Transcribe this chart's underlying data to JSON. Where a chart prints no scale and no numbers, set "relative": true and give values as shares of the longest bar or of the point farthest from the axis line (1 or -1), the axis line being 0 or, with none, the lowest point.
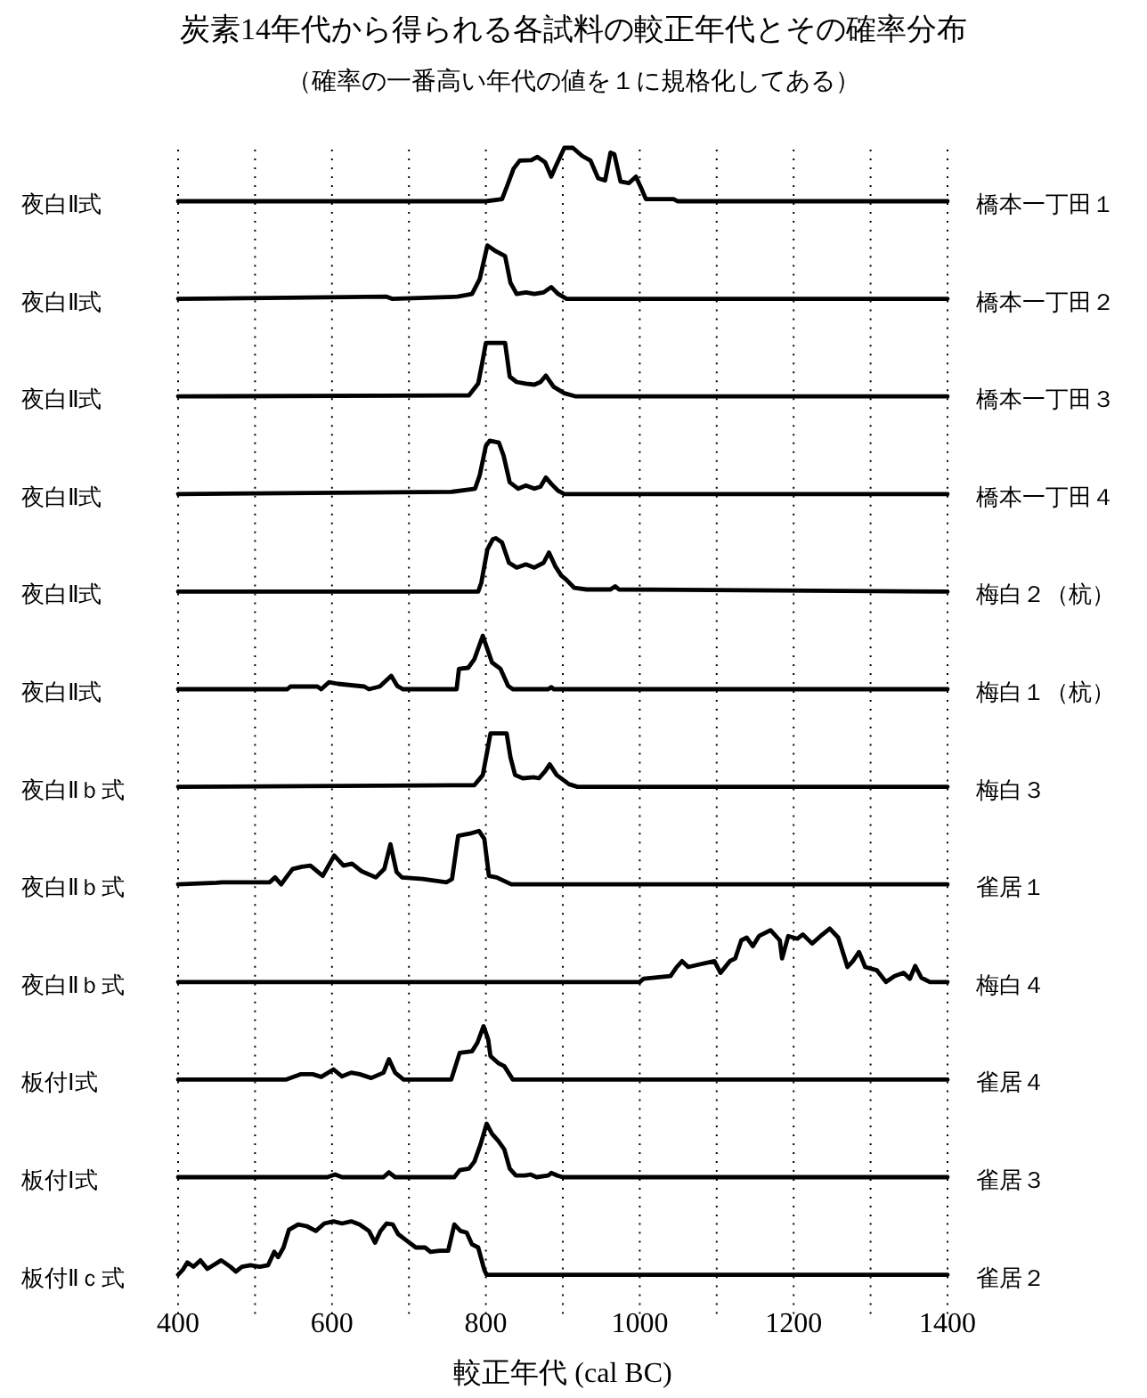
{
  "chart_data": [
    {
      "type": "line",
      "relative": true,
      "title": "炭素14年代から得られる各試料の較正年代とその確率分布",
      "subtitle": "（確率の一番高い年代の値を１に規格化してある）",
      "ylabel": "夜白Ⅱ式",
      "y2label": "橋本一丁田１",
      "grid": "x",
      "tick_labels": false,
      "xlim": [
        400,
        1400
      ],
      "xticks": [
        400,
        {
          "value": 500,
          "label": null
        },
        600,
        {
          "value": 700,
          "label": null
        },
        800,
        {
          "value": 900,
          "label": null
        },
        1000,
        {
          "value": 1100,
          "label": null
        },
        1200,
        {
          "value": 1300,
          "label": null
        },
        1400
      ],
      "x": [
        400,
        800,
        821,
        828,
        836,
        844,
        859,
        867,
        877,
        885,
        890,
        902,
        913,
        925,
        936,
        946,
        955,
        962,
        967,
        975,
        986,
        995,
        1002,
        1008,
        1044,
        1049,
        1400
      ],
      "series": [
        {
          "color": "#000000",
          "values": [
            0,
            0,
            0.04,
            0.3,
            0.61,
            0.76,
            0.77,
            0.83,
            0.73,
            0.46,
            0.63,
            1,
            1,
            0.85,
            0.76,
            0.43,
            0.39,
            0.91,
            0.88,
            0.37,
            0.34,
            0.46,
            0.24,
            0.04,
            0.04,
            0,
            0
          ]
        }
      ]
    },
    {
      "type": "line",
      "relative": true,
      "ylabel": "夜白Ⅱ式",
      "y2label": "橋本一丁田２",
      "grid": "x",
      "tick_labels": false,
      "xlim": [
        400,
        1400
      ],
      "xticks": [
        400,
        {
          "value": 500,
          "label": null
        },
        600,
        {
          "value": 700,
          "label": null
        },
        800,
        {
          "value": 900,
          "label": null
        },
        1000,
        {
          "value": 1100,
          "label": null
        },
        1200,
        {
          "value": 1300,
          "label": null
        },
        1400
      ],
      "x": [
        400,
        671,
        678,
        763,
        782,
        792,
        802,
        813,
        825,
        832,
        840,
        852,
        863,
        875,
        885,
        894,
        905,
        1400
      ],
      "series": [
        {
          "color": "#000000",
          "values": [
            0,
            0.04,
            0,
            0.04,
            0.09,
            0.37,
            1,
            0.89,
            0.8,
            0.3,
            0.09,
            0.12,
            0.09,
            0.12,
            0.22,
            0.09,
            0,
            0
          ]
        }
      ]
    },
    {
      "type": "line",
      "relative": true,
      "ylabel": "夜白Ⅱ式",
      "y2label": "橋本一丁田３",
      "grid": "x",
      "tick_labels": false,
      "xlim": [
        400,
        1400
      ],
      "xticks": [
        400,
        {
          "value": 500,
          "label": null
        },
        600,
        {
          "value": 700,
          "label": null
        },
        800,
        {
          "value": 900,
          "label": null
        },
        1000,
        {
          "value": 1100,
          "label": null
        },
        1200,
        {
          "value": 1300,
          "label": null
        },
        1400
      ],
      "x": [
        400,
        778,
        790,
        795,
        800,
        825,
        831,
        840,
        852,
        863,
        871,
        878,
        888,
        902,
        917,
        1400
      ],
      "series": [
        {
          "color": "#000000",
          "values": [
            0,
            0.02,
            0.24,
            0.61,
            1,
            1,
            0.37,
            0.27,
            0.24,
            0.22,
            0.27,
            0.39,
            0.18,
            0.06,
            0,
            0
          ]
        }
      ]
    },
    {
      "type": "line",
      "relative": true,
      "ylabel": "夜白Ⅱ式",
      "y2label": "橋本一丁田４",
      "grid": "x",
      "tick_labels": false,
      "xlim": [
        400,
        1400
      ],
      "xticks": [
        400,
        {
          "value": 500,
          "label": null
        },
        600,
        {
          "value": 700,
          "label": null
        },
        800,
        {
          "value": 900,
          "label": null
        },
        1000,
        {
          "value": 1100,
          "label": null
        },
        1200,
        {
          "value": 1300,
          "label": null
        },
        1400
      ],
      "x": [
        400,
        755,
        786,
        792,
        800,
        805,
        817,
        823,
        831,
        842,
        852,
        863,
        871,
        878,
        885,
        894,
        902,
        1400
      ],
      "series": [
        {
          "color": "#000000",
          "values": [
            0,
            0.04,
            0.1,
            0.35,
            0.9,
            1,
            0.96,
            0.72,
            0.22,
            0.1,
            0.16,
            0.1,
            0.14,
            0.31,
            0.19,
            0.06,
            0,
            0
          ]
        }
      ]
    },
    {
      "type": "line",
      "relative": true,
      "ylabel": "夜白Ⅱ式",
      "y2label": "梅白２（杭）",
      "grid": "x",
      "tick_labels": false,
      "xlim": [
        400,
        1400
      ],
      "xticks": [
        400,
        {
          "value": 500,
          "label": null
        },
        600,
        {
          "value": 700,
          "label": null
        },
        800,
        {
          "value": 900,
          "label": null
        },
        1000,
        {
          "value": 1100,
          "label": null
        },
        1200,
        {
          "value": 1300,
          "label": null
        },
        1400
      ],
      "x": [
        400,
        790,
        794,
        802,
        809,
        813,
        821,
        830,
        840,
        852,
        863,
        875,
        882,
        890,
        898,
        904,
        915,
        931,
        962,
        968,
        973,
        1400
      ],
      "series": [
        {
          "color": "#000000",
          "values": [
            0,
            0,
            0.16,
            0.79,
            0.98,
            1,
            0.92,
            0.54,
            0.45,
            0.51,
            0.45,
            0.54,
            0.73,
            0.48,
            0.3,
            0.23,
            0.07,
            0.04,
            0.04,
            0.1,
            0.04,
            0
          ]
        }
      ]
    },
    {
      "type": "line",
      "relative": true,
      "ylabel": "夜白Ⅱ式",
      "y2label": "梅白１（杭）",
      "grid": "x",
      "tick_labels": false,
      "xlim": [
        400,
        1400
      ],
      "xticks": [
        400,
        {
          "value": 500,
          "label": null
        },
        600,
        {
          "value": 700,
          "label": null
        },
        800,
        {
          "value": 900,
          "label": null
        },
        1000,
        {
          "value": 1100,
          "label": null
        },
        1200,
        {
          "value": 1300,
          "label": null
        },
        1400
      ],
      "x": [
        400,
        542,
        546,
        581,
        586,
        596,
        608,
        642,
        648,
        662,
        677,
        685,
        692,
        762,
        765,
        777,
        785,
        796,
        802,
        808,
        819,
        829,
        835,
        881,
        885,
        888,
        1400
      ],
      "series": [
        {
          "color": "#000000",
          "values": [
            0,
            0,
            0.05,
            0.05,
            0,
            0.13,
            0.1,
            0.05,
            0,
            0.05,
            0.25,
            0.06,
            0,
            0,
            0.38,
            0.4,
            0.56,
            1,
            0.75,
            0.5,
            0.38,
            0.06,
            0,
            0,
            0.04,
            0,
            0
          ]
        }
      ]
    },
    {
      "type": "line",
      "relative": true,
      "ylabel": "夜白Ⅱｂ式",
      "y2label": "梅白３",
      "grid": "x",
      "tick_labels": false,
      "xlim": [
        400,
        1400
      ],
      "xticks": [
        400,
        {
          "value": 500,
          "label": null
        },
        600,
        {
          "value": 700,
          "label": null
        },
        800,
        {
          "value": 900,
          "label": null
        },
        1000,
        {
          "value": 1100,
          "label": null
        },
        1200,
        {
          "value": 1300,
          "label": null
        },
        1400
      ],
      "x": [
        400,
        785,
        796,
        802,
        806,
        827,
        832,
        838,
        848,
        862,
        869,
        877,
        883,
        892,
        908,
        919,
        1400
      ],
      "series": [
        {
          "color": "#000000",
          "values": [
            0,
            0.03,
            0.22,
            0.68,
            1,
            1,
            0.55,
            0.22,
            0.16,
            0.18,
            0.16,
            0.29,
            0.42,
            0.22,
            0.05,
            0,
            0
          ]
        }
      ]
    },
    {
      "type": "line",
      "relative": true,
      "ylabel": "夜白Ⅱｂ式",
      "y2label": "雀居１",
      "grid": "x",
      "tick_labels": false,
      "xlim": [
        400,
        1400
      ],
      "xticks": [
        400,
        {
          "value": 500,
          "label": null
        },
        600,
        {
          "value": 700,
          "label": null
        },
        800,
        {
          "value": 900,
          "label": null
        },
        1000,
        {
          "value": 1100,
          "label": null
        },
        1200,
        {
          "value": 1300,
          "label": null
        },
        1400
      ],
      "x": [
        400,
        450,
        457,
        519,
        526,
        534,
        542,
        549,
        561,
        572,
        588,
        603,
        615,
        626,
        638,
        657,
        668,
        676,
        684,
        691,
        718,
        749,
        756,
        764,
        779,
        791,
        798,
        804,
        814,
        833,
        1400
      ],
      "series": [
        {
          "color": "#000000",
          "values": [
            0,
            0.03,
            0.04,
            0.04,
            0.13,
            0,
            0.16,
            0.29,
            0.33,
            0.35,
            0.16,
            0.54,
            0.35,
            0.39,
            0.25,
            0.13,
            0.29,
            0.75,
            0.23,
            0.13,
            0.1,
            0.04,
            0.1,
            0.91,
            0.95,
            1,
            0.85,
            0.16,
            0.13,
            0,
            0
          ]
        }
      ]
    },
    {
      "type": "line",
      "relative": true,
      "ylabel": "夜白Ⅱｂ式",
      "y2label": "梅白４",
      "grid": "x",
      "tick_labels": false,
      "xlim": [
        400,
        1400
      ],
      "xticks": [
        400,
        {
          "value": 500,
          "label": null
        },
        600,
        {
          "value": 700,
          "label": null
        },
        800,
        {
          "value": 900,
          "label": null
        },
        1000,
        {
          "value": 1100,
          "label": null
        },
        1200,
        {
          "value": 1300,
          "label": null
        },
        1400
      ],
      "x": [
        400,
        1000,
        1005,
        1040,
        1048,
        1055,
        1063,
        1078,
        1097,
        1105,
        1117,
        1124,
        1132,
        1139,
        1147,
        1155,
        1170,
        1182,
        1185,
        1193,
        1205,
        1212,
        1224,
        1235,
        1247,
        1258,
        1270,
        1277,
        1285,
        1293,
        1308,
        1320,
        1331,
        1343,
        1351,
        1358,
        1366,
        1377,
        1400
      ],
      "series": [
        {
          "color": "#000000",
          "values": [
            0,
            0,
            0.06,
            0.11,
            0.28,
            0.39,
            0.28,
            0.33,
            0.39,
            0.17,
            0.39,
            0.44,
            0.78,
            0.83,
            0.67,
            0.86,
            0.97,
            0.78,
            0.44,
            0.86,
            0.81,
            0.89,
            0.72,
            0.86,
            1,
            0.83,
            0.28,
            0.39,
            0.56,
            0.28,
            0.22,
            0,
            0.11,
            0.17,
            0.06,
            0.3,
            0.08,
            0,
            0
          ]
        }
      ]
    },
    {
      "type": "line",
      "relative": true,
      "ylabel": "板付Ⅰ式",
      "y2label": "雀居４",
      "grid": "x",
      "tick_labels": false,
      "xlim": [
        400,
        1400
      ],
      "xticks": [
        400,
        {
          "value": 500,
          "label": null
        },
        600,
        {
          "value": 700,
          "label": null
        },
        800,
        {
          "value": 900,
          "label": null
        },
        1000,
        {
          "value": 1100,
          "label": null
        },
        1200,
        {
          "value": 1300,
          "label": null
        },
        1400
      ],
      "x": [
        400,
        540,
        559,
        575,
        586,
        602,
        613,
        625,
        636,
        651,
        667,
        674,
        682,
        693,
        755,
        766,
        782,
        789,
        797,
        803,
        806,
        816,
        824,
        835,
        1400
      ],
      "series": [
        {
          "color": "#000000",
          "values": [
            0,
            0,
            0.1,
            0.1,
            0.05,
            0.19,
            0.06,
            0.13,
            0.1,
            0.03,
            0.13,
            0.38,
            0.13,
            0,
            0,
            0.5,
            0.53,
            0.69,
            1,
            0.75,
            0.44,
            0.31,
            0.25,
            0,
            0
          ]
        }
      ]
    },
    {
      "type": "line",
      "relative": true,
      "ylabel": "板付Ⅰ式",
      "y2label": "雀居３",
      "grid": "x",
      "tick_labels": false,
      "xlim": [
        400,
        1400
      ],
      "xticks": [
        400,
        {
          "value": 500,
          "label": null
        },
        600,
        {
          "value": 700,
          "label": null
        },
        800,
        {
          "value": 900,
          "label": null
        },
        1000,
        {
          "value": 1100,
          "label": null
        },
        1200,
        {
          "value": 1300,
          "label": null
        },
        1400
      ],
      "x": [
        400,
        594,
        604,
        613,
        667,
        674,
        682,
        759,
        766,
        778,
        785,
        793,
        801,
        808,
        816,
        824,
        831,
        839,
        851,
        858,
        866,
        881,
        885,
        893,
        900,
        1400
      ],
      "series": [
        {
          "color": "#000000",
          "values": [
            0,
            0,
            0.05,
            0,
            0,
            0.09,
            0,
            0,
            0.13,
            0.16,
            0.29,
            0.61,
            1,
            0.81,
            0.68,
            0.52,
            0.16,
            0.03,
            0.03,
            0.05,
            0,
            0.03,
            0.08,
            0.03,
            0,
            0
          ]
        }
      ]
    },
    {
      "type": "line",
      "relative": true,
      "ylabel": "板付Ⅱｃ式",
      "y2label": "雀居２",
      "xlabel": "較正年代 (cal BC)",
      "grid": "x",
      "tick_labels": "x",
      "xlim": [
        400,
        1400
      ],
      "xticks": [
        400,
        {
          "value": 500,
          "label": null
        },
        600,
        {
          "value": 700,
          "label": null
        },
        800,
        {
          "value": 900,
          "label": null
        },
        1000,
        {
          "value": 1100,
          "label": null
        },
        1200,
        {
          "value": 1300,
          "label": null
        },
        1400
      ],
      "x": [
        400,
        406,
        412,
        420,
        429,
        438,
        446,
        456,
        468,
        475,
        483,
        494,
        506,
        517,
        525,
        530,
        537,
        544,
        556,
        567,
        579,
        590,
        602,
        613,
        625,
        636,
        648,
        656,
        663,
        671,
        679,
        686,
        698,
        709,
        721,
        728,
        740,
        751,
        759,
        767,
        775,
        782,
        790,
        798,
        801,
        1400
      ],
      "series": [
        {
          "color": "#000000",
          "values": [
            0,
            0.09,
            0.23,
            0.15,
            0.27,
            0.11,
            0.18,
            0.27,
            0.15,
            0.06,
            0.15,
            0.18,
            0.15,
            0.18,
            0.43,
            0.33,
            0.51,
            0.84,
            0.94,
            0.91,
            0.82,
            0.96,
            1,
            0.96,
            1,
            0.94,
            0.82,
            0.6,
            0.82,
            0.96,
            0.94,
            0.76,
            0.63,
            0.51,
            0.51,
            0.43,
            0.45,
            0.45,
            0.94,
            0.82,
            0.79,
            0.57,
            0.51,
            0.09,
            0,
            0
          ]
        }
      ]
    }
  ]
}
